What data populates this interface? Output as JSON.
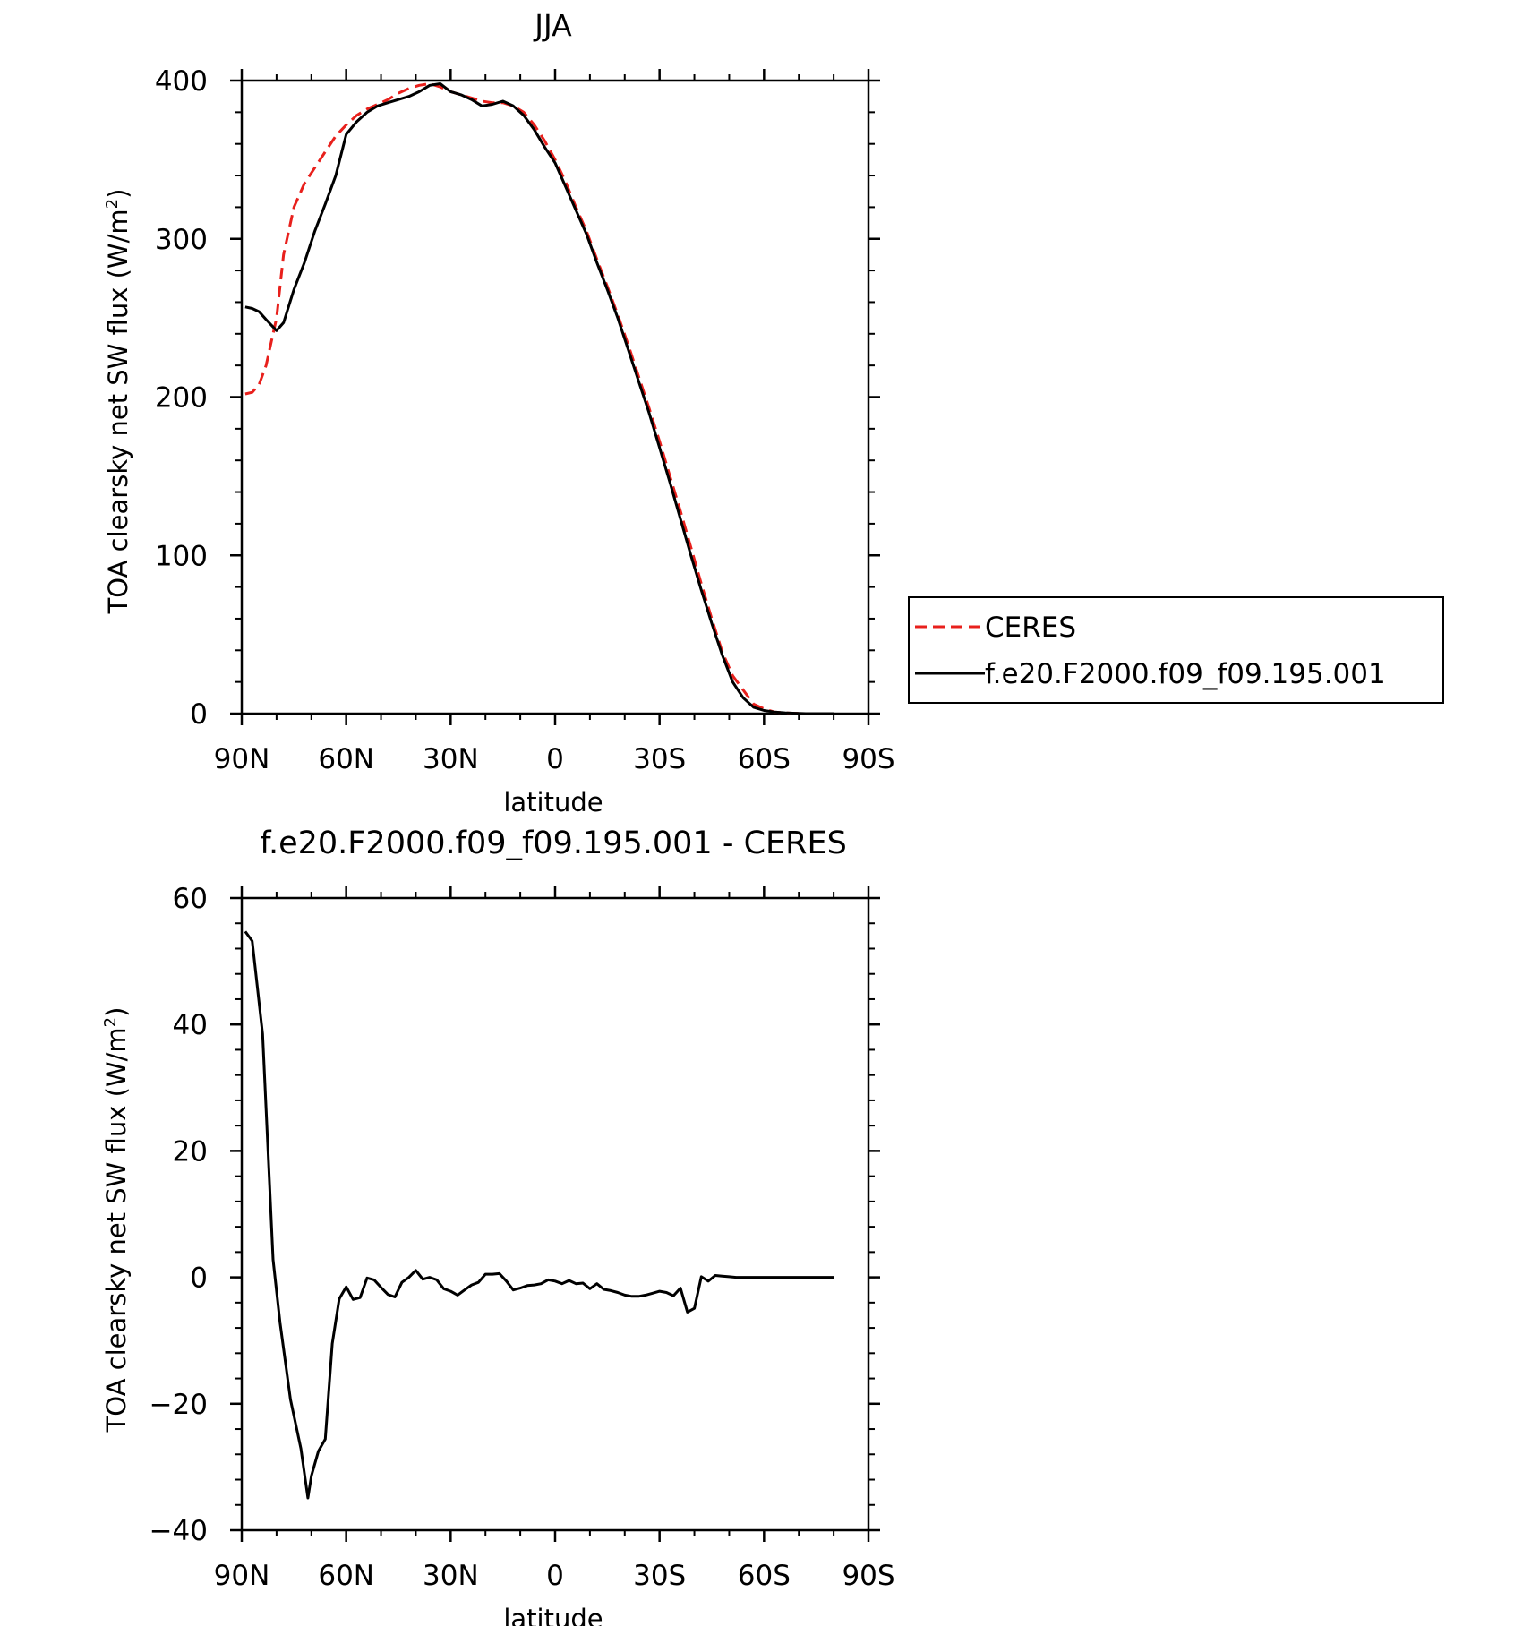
{
  "chart_data": [
    {
      "type": "line",
      "title": "JJA",
      "xlabel": "latitude",
      "ylabel": "TOA clearsky net SW flux (W/m",
      "ylabel_sup": "2",
      "ylabel_end": ")",
      "xlim": [
        90,
        -90
      ],
      "ylim": [
        0,
        400
      ],
      "x_ticks": [
        90,
        60,
        30,
        0,
        -30,
        -60,
        -90
      ],
      "x_tick_labels": [
        "90N",
        "60N",
        "30N",
        "0",
        "30S",
        "60S",
        "90S"
      ],
      "y_ticks": [
        0,
        100,
        200,
        300,
        400
      ],
      "y_tick_labels": [
        "0",
        "100",
        "200",
        "300",
        "400"
      ],
      "legend": {
        "placement": "right",
        "entries": [
          "CERES",
          "f.e20.F2000.f09_f09.195.001"
        ]
      },
      "series": [
        {
          "name": "CERES",
          "color": "#e8201c",
          "dash": "dashed",
          "x": [
            89,
            87,
            85,
            83,
            80,
            78,
            75,
            72,
            69,
            66,
            63,
            60,
            57,
            54,
            51,
            48,
            45,
            42,
            39,
            36,
            33,
            30,
            27,
            24,
            21,
            18,
            15,
            12,
            9,
            6,
            3,
            0,
            -3,
            -6,
            -9,
            -12,
            -15,
            -18,
            -21,
            -24,
            -27,
            -30,
            -33,
            -36,
            -39,
            -42,
            -45,
            -48,
            -51,
            -54,
            -57,
            -60,
            -63,
            -66,
            -69,
            -72,
            -75,
            -78,
            -80
          ],
          "y": [
            202,
            203,
            208,
            220,
            250,
            290,
            320,
            335,
            345,
            355,
            365,
            372,
            378,
            382,
            385,
            388,
            392,
            395,
            397,
            398,
            396,
            393,
            391,
            389,
            387,
            386,
            386,
            384,
            380,
            372,
            362,
            350,
            336,
            320,
            305,
            287,
            270,
            252,
            233,
            213,
            193,
            172,
            150,
            128,
            105,
            82,
            60,
            39,
            24,
            15,
            6,
            3,
            1,
            0.5,
            0.2,
            0,
            0,
            0,
            0
          ]
        },
        {
          "name": "f.e20.F2000.f09_f09.195.001",
          "color": "#000000",
          "dash": "solid",
          "x": [
            89,
            87,
            85,
            83,
            80,
            78,
            75,
            72,
            69,
            66,
            63,
            60,
            57,
            54,
            51,
            48,
            45,
            42,
            39,
            36,
            33,
            30,
            27,
            24,
            21,
            18,
            15,
            12,
            9,
            6,
            3,
            0,
            -3,
            -6,
            -9,
            -12,
            -15,
            -18,
            -21,
            -24,
            -27,
            -30,
            -33,
            -36,
            -39,
            -42,
            -45,
            -48,
            -51,
            -54,
            -57,
            -60,
            -63,
            -66,
            -69,
            -72,
            -75,
            -78,
            -80
          ],
          "y": [
            257,
            256,
            254,
            249,
            242,
            247,
            268,
            285,
            305,
            322,
            340,
            366,
            374,
            380,
            384,
            386,
            388,
            390,
            393,
            397,
            398,
            393,
            391,
            388,
            384,
            385,
            387,
            384,
            378,
            369,
            358,
            348,
            333,
            318,
            303,
            285,
            268,
            250,
            230,
            210,
            190,
            168,
            146,
            123,
            100,
            78,
            57,
            37,
            20,
            10,
            4,
            2,
            1,
            0.5,
            0.2,
            0,
            0,
            0,
            0
          ]
        }
      ]
    },
    {
      "type": "line",
      "title": "f.e20.F2000.f09_f09.195.001 - CERES",
      "xlabel": "latitude",
      "ylabel": "TOA clearsky net SW flux (W/m",
      "ylabel_sup": "2",
      "ylabel_end": ")",
      "xlim": [
        90,
        -90
      ],
      "ylim": [
        -40,
        60
      ],
      "x_ticks": [
        90,
        60,
        30,
        0,
        -30,
        -60,
        -90
      ],
      "x_tick_labels": [
        "90N",
        "60N",
        "30N",
        "0",
        "30S",
        "60S",
        "90S"
      ],
      "y_ticks": [
        -40,
        -20,
        0,
        20,
        40,
        60
      ],
      "y_tick_labels": [
        "−40",
        "−20",
        "0",
        "20",
        "40",
        "60"
      ],
      "series": [
        {
          "color": "#000000",
          "dash": "solid",
          "x": [
            89,
            87,
            84,
            81,
            79,
            76,
            73,
            71,
            70,
            68,
            66,
            64,
            62,
            60,
            58,
            56,
            54,
            52,
            50,
            48,
            46,
            44,
            42,
            40,
            38,
            36,
            34,
            32,
            30,
            28,
            26,
            24,
            22,
            20,
            18,
            16,
            14,
            12,
            10,
            8,
            6,
            4,
            2,
            0,
            -2,
            -4,
            -6,
            -8,
            -10,
            -12,
            -14,
            -16,
            -18,
            -20,
            -22,
            -24,
            -26,
            -28,
            -30,
            -32,
            -34,
            -36,
            -38,
            -40,
            -42,
            -44,
            -46,
            -48,
            -50,
            -52,
            -54,
            -56,
            -58,
            -60,
            -62,
            -64,
            -66,
            -68,
            -70,
            -72,
            -74,
            -76,
            -78,
            -80
          ],
          "y": [
            54.7,
            53.2,
            38.5,
            2.8,
            -7.2,
            -19.3,
            -27.1,
            -34.9,
            -31.4,
            -27.5,
            -25.6,
            -10.5,
            -3.4,
            -1.5,
            -3.5,
            -3.2,
            -0.1,
            -0.4,
            -1.6,
            -2.7,
            -3.1,
            -0.8,
            0.0,
            1.1,
            -0.3,
            0.0,
            -0.4,
            -1.8,
            -2.2,
            -2.8,
            -2.0,
            -1.2,
            -0.8,
            0.5,
            0.5,
            0.6,
            -0.6,
            -2.0,
            -1.7,
            -1.3,
            -1.2,
            -1.0,
            -0.4,
            -0.6,
            -1.0,
            -0.5,
            -1.0,
            -0.9,
            -1.8,
            -1.0,
            -1.9,
            -2.1,
            -2.4,
            -2.8,
            -3.0,
            -3.0,
            -2.8,
            -2.5,
            -2.2,
            -2.4,
            -2.9,
            -1.7,
            -5.5,
            -4.9,
            0.1,
            -0.6,
            0.3,
            0.2,
            0.1,
            0.0,
            0.0,
            0.0,
            0.0,
            0.0,
            0.0,
            0.0,
            0.0,
            0.0,
            0.0,
            0.0,
            0.0,
            0.0,
            0.0,
            0.0
          ]
        }
      ]
    }
  ]
}
